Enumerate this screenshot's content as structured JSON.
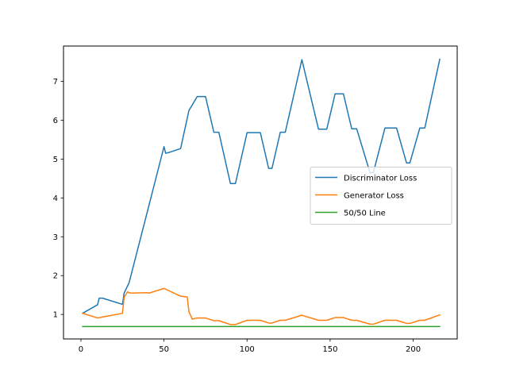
{
  "chart_data": {
    "type": "line",
    "title": "",
    "xlabel": "",
    "ylabel": "",
    "xlim": [
      -10.5,
      226.5
    ],
    "ylim": [
      0.37,
      7.91
    ],
    "xticks": [
      0,
      50,
      100,
      150,
      200
    ],
    "yticks": [
      1,
      2,
      3,
      4,
      5,
      6,
      7
    ],
    "grid": false,
    "legend_position": "center-right",
    "series": [
      {
        "name": "Discriminator Loss",
        "color": "#1f77b4",
        "points": [
          [
            1,
            1.03
          ],
          [
            10,
            1.25
          ],
          [
            11,
            1.42
          ],
          [
            13,
            1.42
          ],
          [
            25,
            1.26
          ],
          [
            26,
            1.55
          ],
          [
            29,
            1.82
          ],
          [
            40,
            3.65
          ],
          [
            50,
            5.32
          ],
          [
            51,
            5.15
          ],
          [
            53,
            5.17
          ],
          [
            60,
            5.27
          ],
          [
            65,
            6.25
          ],
          [
            70,
            6.61
          ],
          [
            75,
            6.61
          ],
          [
            80,
            5.69
          ],
          [
            83,
            5.69
          ],
          [
            90,
            4.37
          ],
          [
            93,
            4.37
          ],
          [
            100,
            5.68
          ],
          [
            108,
            5.68
          ],
          [
            113,
            4.76
          ],
          [
            115,
            4.76
          ],
          [
            120,
            5.69
          ],
          [
            123,
            5.69
          ],
          [
            133,
            7.56
          ],
          [
            143,
            5.77
          ],
          [
            148,
            5.77
          ],
          [
            153,
            6.68
          ],
          [
            158,
            6.68
          ],
          [
            163,
            5.78
          ],
          [
            166,
            5.78
          ],
          [
            174,
            4.65
          ],
          [
            176,
            4.65
          ],
          [
            183,
            5.8
          ],
          [
            190,
            5.8
          ],
          [
            196,
            4.9
          ],
          [
            198,
            4.9
          ],
          [
            204,
            5.8
          ],
          [
            207,
            5.8
          ],
          [
            216,
            7.57
          ]
        ]
      },
      {
        "name": "Generator Loss",
        "color": "#ff7f0e",
        "points": [
          [
            1,
            1.03
          ],
          [
            10,
            0.91
          ],
          [
            25,
            1.03
          ],
          [
            26,
            1.44
          ],
          [
            28,
            1.58
          ],
          [
            30,
            1.55
          ],
          [
            40,
            1.56
          ],
          [
            41,
            1.55
          ],
          [
            50,
            1.67
          ],
          [
            60,
            1.47
          ],
          [
            64,
            1.45
          ],
          [
            65,
            1.07
          ],
          [
            67,
            0.88
          ],
          [
            70,
            0.91
          ],
          [
            75,
            0.91
          ],
          [
            80,
            0.84
          ],
          [
            83,
            0.84
          ],
          [
            90,
            0.74
          ],
          [
            93,
            0.74
          ],
          [
            100,
            0.85
          ],
          [
            108,
            0.85
          ],
          [
            113,
            0.78
          ],
          [
            115,
            0.78
          ],
          [
            120,
            0.85
          ],
          [
            123,
            0.85
          ],
          [
            133,
            0.98
          ],
          [
            143,
            0.85
          ],
          [
            148,
            0.85
          ],
          [
            153,
            0.92
          ],
          [
            158,
            0.92
          ],
          [
            163,
            0.85
          ],
          [
            166,
            0.85
          ],
          [
            174,
            0.75
          ],
          [
            176,
            0.75
          ],
          [
            183,
            0.85
          ],
          [
            190,
            0.85
          ],
          [
            196,
            0.77
          ],
          [
            198,
            0.77
          ],
          [
            204,
            0.85
          ],
          [
            207,
            0.85
          ],
          [
            216,
            0.99
          ]
        ]
      },
      {
        "name": "50/50 Line",
        "color": "#2ca02c",
        "points": [
          [
            1,
            0.69
          ],
          [
            216,
            0.69
          ]
        ]
      }
    ]
  }
}
